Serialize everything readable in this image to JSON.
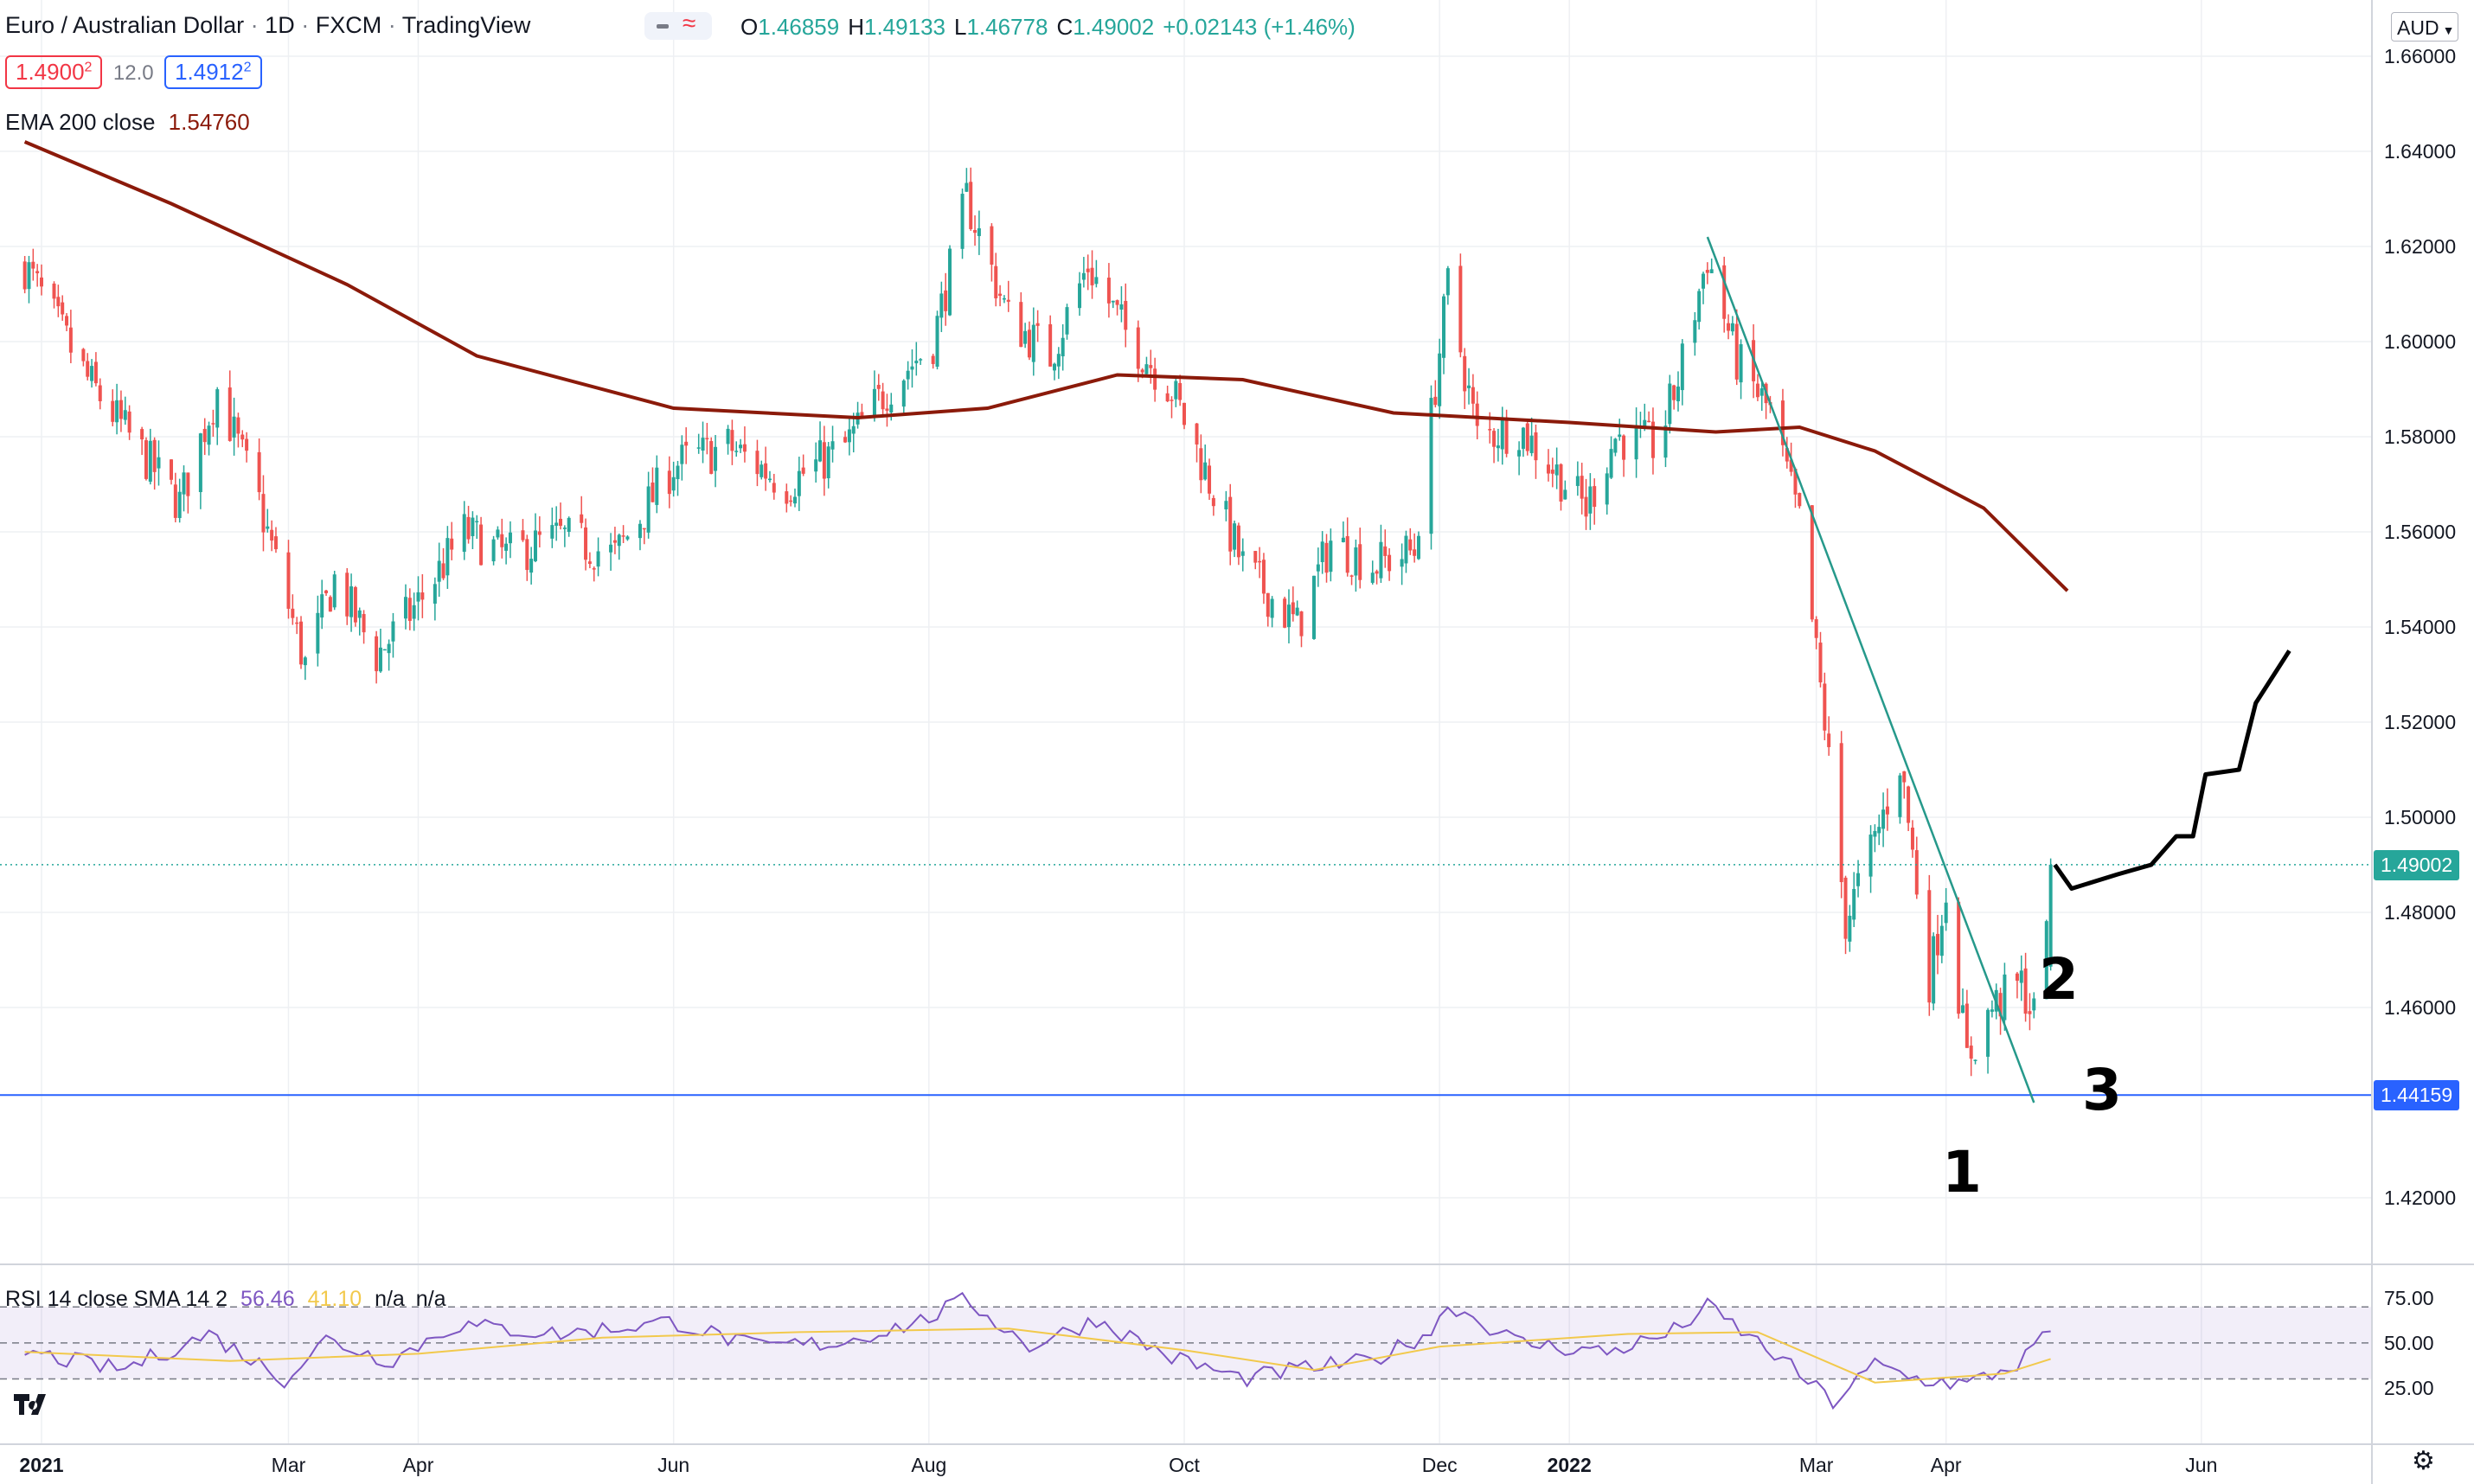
{
  "header": {
    "symbol": "Euro / Australian Dollar",
    "interval": "1D",
    "exchange": "FXCM",
    "platform": "TradingView",
    "sep": "·",
    "ohlc": [
      {
        "k": "O",
        "v": "1.46859"
      },
      {
        "k": "H",
        "v": "1.49133"
      },
      {
        "k": "L",
        "v": "1.46778"
      },
      {
        "k": "C",
        "v": "1.49002"
      }
    ],
    "change": "+0.02143 (+1.46%)",
    "bid": "1.4900",
    "bid_sup": "2",
    "spread": "12.0",
    "ask": "1.4912",
    "ask_sup": "2",
    "ema_label": "EMA 200 close",
    "ema_value": "1.54760",
    "currency": "AUD"
  },
  "rsi_header": {
    "label": "RSI 14 close SMA 14 2",
    "rsi": "56.46",
    "sma": "41.10",
    "na1": "n/a",
    "na2": "n/a"
  },
  "price_tags": {
    "last": "1.49002",
    "support": "1.44159"
  },
  "annotations": [
    "1",
    "2",
    "3"
  ],
  "colors": {
    "up": "#26a69a",
    "down": "#ef5350",
    "ema": "#8b1a0a",
    "rsi": "#7e57c2",
    "rsi_sma": "#f2c94c",
    "support": "#2962ff",
    "trend": "#26998b",
    "projection": "#000000"
  },
  "chart_data": {
    "type": "candlestick",
    "price_axis": {
      "ticks": [
        "1.66000",
        "1.64000",
        "1.62000",
        "1.60000",
        "1.58000",
        "1.56000",
        "1.54000",
        "1.52000",
        "1.50000",
        "1.48000",
        "1.46000",
        "1.42000"
      ],
      "tick_values": [
        1.66,
        1.64,
        1.62,
        1.6,
        1.58,
        1.56,
        1.54,
        1.52,
        1.5,
        1.48,
        1.46,
        1.42
      ],
      "range": [
        1.414,
        1.664
      ]
    },
    "rsi_axis": {
      "ticks": [
        "75.00",
        "50.00",
        "25.00"
      ],
      "tick_values": [
        75,
        50,
        25
      ],
      "band": [
        30,
        70
      ],
      "range": [
        12,
        86
      ]
    },
    "time_axis": [
      "2021",
      "Mar",
      "Apr",
      "Jun",
      "Aug",
      "Oct",
      "Dec",
      "2022",
      "Mar",
      "Apr",
      "Jun"
    ],
    "time_axis_dates": [
      "2021-01-01",
      "2021-03-01",
      "2021-04-01",
      "2021-06-01",
      "2021-08-01",
      "2021-10-01",
      "2021-12-01",
      "2022-01-01",
      "2022-03-01",
      "2022-04-01",
      "2022-06-01"
    ],
    "price_path": [
      [
        "2020-12-28",
        1.616
      ],
      [
        "2021-01-12",
        1.592
      ],
      [
        "2021-01-22",
        1.58
      ],
      [
        "2021-02-03",
        1.566
      ],
      [
        "2021-02-12",
        1.59
      ],
      [
        "2021-02-22",
        1.566
      ],
      [
        "2021-03-05",
        1.532
      ],
      [
        "2021-03-12",
        1.55
      ],
      [
        "2021-03-22",
        1.534
      ],
      [
        "2021-04-01",
        1.545
      ],
      [
        "2021-04-12",
        1.56
      ],
      [
        "2021-04-22",
        1.555
      ],
      [
        "2021-05-05",
        1.559
      ],
      [
        "2021-05-18",
        1.555
      ],
      [
        "2021-06-01",
        1.574
      ],
      [
        "2021-06-14",
        1.578
      ],
      [
        "2021-06-28",
        1.57
      ],
      [
        "2021-07-12",
        1.578
      ],
      [
        "2021-07-22",
        1.59
      ],
      [
        "2021-08-02",
        1.6
      ],
      [
        "2021-08-10",
        1.63
      ],
      [
        "2021-08-20",
        1.605
      ],
      [
        "2021-08-30",
        1.597
      ],
      [
        "2021-09-08",
        1.616
      ],
      [
        "2021-09-17",
        1.602
      ],
      [
        "2021-09-28",
        1.59
      ],
      [
        "2021-10-05",
        1.575
      ],
      [
        "2021-10-15",
        1.553
      ],
      [
        "2021-10-28",
        1.54
      ],
      [
        "2021-11-05",
        1.558
      ],
      [
        "2021-11-15",
        1.553
      ],
      [
        "2021-11-25",
        1.556
      ],
      [
        "2021-12-03",
        1.612
      ],
      [
        "2021-12-10",
        1.58
      ],
      [
        "2021-12-20",
        1.582
      ],
      [
        "2022-01-05",
        1.565
      ],
      [
        "2022-01-12",
        1.58
      ],
      [
        "2022-01-22",
        1.578
      ],
      [
        "2022-01-27",
        1.592
      ],
      [
        "2022-02-03",
        1.618
      ],
      [
        "2022-02-10",
        1.596
      ],
      [
        "2022-02-18",
        1.585
      ],
      [
        "2022-02-25",
        1.562
      ],
      [
        "2022-03-03",
        1.52
      ],
      [
        "2022-03-08",
        1.478
      ],
      [
        "2022-03-15",
        1.495
      ],
      [
        "2022-03-21",
        1.512
      ],
      [
        "2022-03-28",
        1.466
      ],
      [
        "2022-04-01",
        1.485
      ],
      [
        "2022-04-06",
        1.449
      ],
      [
        "2022-04-12",
        1.46
      ],
      [
        "2022-04-19",
        1.465
      ],
      [
        "2022-04-22",
        1.458
      ],
      [
        "2022-04-26",
        1.49
      ]
    ],
    "ema200": [
      [
        "2020-12-28",
        1.642
      ],
      [
        "2021-02-01",
        1.629
      ],
      [
        "2021-03-15",
        1.612
      ],
      [
        "2021-04-15",
        1.597
      ],
      [
        "2021-06-01",
        1.586
      ],
      [
        "2021-07-15",
        1.584
      ],
      [
        "2021-08-15",
        1.586
      ],
      [
        "2021-09-15",
        1.593
      ],
      [
        "2021-10-15",
        1.592
      ],
      [
        "2021-11-20",
        1.585
      ],
      [
        "2022-01-01",
        1.583
      ],
      [
        "2022-02-05",
        1.581
      ],
      [
        "2022-02-25",
        1.582
      ],
      [
        "2022-03-15",
        1.577
      ],
      [
        "2022-04-10",
        1.565
      ],
      [
        "2022-04-30",
        1.5476
      ]
    ],
    "rsi": [
      [
        "2020-12-28",
        45
      ],
      [
        "2021-01-20",
        35
      ],
      [
        "2021-02-10",
        55
      ],
      [
        "2021-02-28",
        30
      ],
      [
        "2021-03-10",
        52
      ],
      [
        "2021-03-25",
        40
      ],
      [
        "2021-04-10",
        60
      ],
      [
        "2021-05-05",
        55
      ],
      [
        "2021-06-01",
        62
      ],
      [
        "2021-06-20",
        48
      ],
      [
        "2021-07-10",
        50
      ],
      [
        "2021-07-30",
        62
      ],
      [
        "2021-08-10",
        74
      ],
      [
        "2021-08-25",
        48
      ],
      [
        "2021-09-10",
        63
      ],
      [
        "2021-09-28",
        42
      ],
      [
        "2021-10-15",
        30
      ],
      [
        "2021-10-30",
        36
      ],
      [
        "2021-11-15",
        40
      ],
      [
        "2021-11-30",
        58
      ],
      [
        "2021-12-03",
        72
      ],
      [
        "2021-12-20",
        50
      ],
      [
        "2022-01-10",
        45
      ],
      [
        "2022-01-25",
        55
      ],
      [
        "2022-02-03",
        70
      ],
      [
        "2022-02-20",
        42
      ],
      [
        "2022-03-05",
        17
      ],
      [
        "2022-03-15",
        38
      ],
      [
        "2022-03-25",
        30
      ],
      [
        "2022-04-06",
        27
      ],
      [
        "2022-04-18",
        38
      ],
      [
        "2022-04-26",
        56.46
      ]
    ],
    "rsi_sma": [
      [
        "2020-12-28",
        45
      ],
      [
        "2021-02-15",
        40
      ],
      [
        "2021-04-01",
        44
      ],
      [
        "2021-05-15",
        53
      ],
      [
        "2021-07-01",
        56
      ],
      [
        "2021-08-20",
        58
      ],
      [
        "2021-10-01",
        46
      ],
      [
        "2021-11-01",
        35
      ],
      [
        "2021-12-01",
        48
      ],
      [
        "2022-01-15",
        55
      ],
      [
        "2022-02-15",
        56
      ],
      [
        "2022-03-15",
        28
      ],
      [
        "2022-04-15",
        33
      ],
      [
        "2022-04-26",
        41.1
      ]
    ],
    "support_level": 1.44159,
    "last_price": 1.49002,
    "trendline": [
      [
        "2022-02-03",
        1.622
      ],
      [
        "2022-04-22",
        1.44
      ]
    ],
    "projection": [
      [
        "2022-04-27",
        1.49
      ],
      [
        "2022-05-01",
        1.485
      ],
      [
        "2022-05-12",
        1.488
      ],
      [
        "2022-05-20",
        1.49
      ],
      [
        "2022-05-26",
        1.496
      ],
      [
        "2022-05-30",
        1.496
      ],
      [
        "2022-06-02",
        1.509
      ],
      [
        "2022-06-10",
        1.51
      ],
      [
        "2022-06-14",
        1.524
      ],
      [
        "2022-06-22",
        1.535
      ]
    ]
  }
}
